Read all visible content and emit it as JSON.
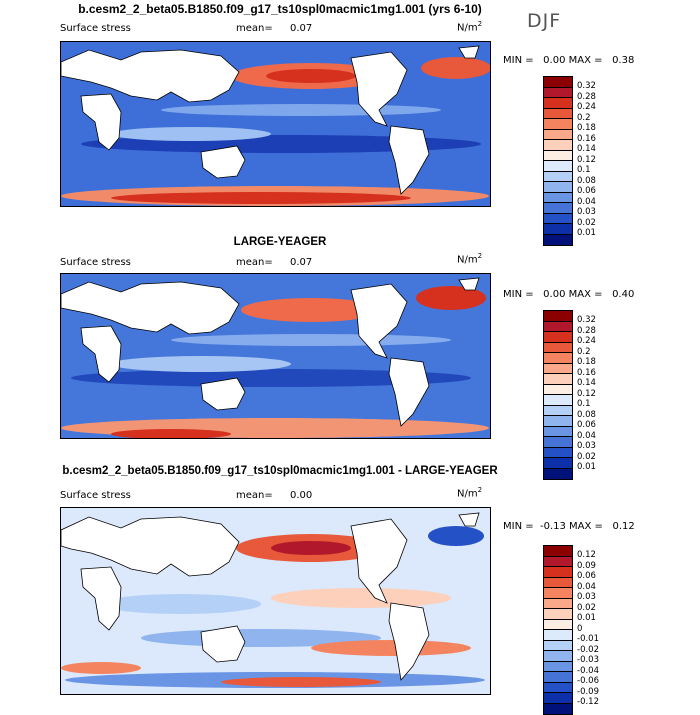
{
  "title": "b.cesm2_2_beta05.B1850.f09_g17_ts10spl0macmic1mg1.001 (yrs 6-10)",
  "season": "DJF",
  "panels": [
    {
      "subtitle": "",
      "left_label": "Surface stress",
      "mean_label": "mean=",
      "mean_value": "0.07",
      "units_base": "N/m",
      "units_exp": "2",
      "min_label": "MIN =",
      "min_value": "0.00",
      "max_label": "MAX =",
      "max_value": "0.38",
      "colorbar": {
        "labels": [
          "0.32",
          "0.28",
          "0.24",
          "0.2",
          "0.18",
          "0.16",
          "0.14",
          "0.12",
          "0.1",
          "0.08",
          "0.06",
          "0.04",
          "0.03",
          "0.02",
          "0.01"
        ],
        "colors": [
          "#8b0000",
          "#b2182b",
          "#d6301f",
          "#e8583a",
          "#f4845f",
          "#f9a98a",
          "#fcd0bb",
          "#fdeee4",
          "#ddeafb",
          "#b5d0f6",
          "#8fb4ee",
          "#6a95e4",
          "#4674d6",
          "#2551c6",
          "#0d2fa8",
          "#00127a"
        ]
      }
    },
    {
      "subtitle": "LARGE-YEAGER",
      "left_label": "Surface stress",
      "mean_label": "mean=",
      "mean_value": "0.07",
      "units_base": "N/m",
      "units_exp": "2",
      "min_label": "MIN =",
      "min_value": "0.00",
      "max_label": "MAX =",
      "max_value": "0.40",
      "colorbar": {
        "labels": [
          "0.32",
          "0.28",
          "0.24",
          "0.2",
          "0.18",
          "0.16",
          "0.14",
          "0.12",
          "0.1",
          "0.08",
          "0.06",
          "0.04",
          "0.03",
          "0.02",
          "0.01"
        ],
        "colors": [
          "#8b0000",
          "#b2182b",
          "#d6301f",
          "#e8583a",
          "#f4845f",
          "#f9a98a",
          "#fcd0bb",
          "#fdeee4",
          "#ddeafb",
          "#b5d0f6",
          "#8fb4ee",
          "#6a95e4",
          "#4674d6",
          "#2551c6",
          "#0d2fa8",
          "#00127a"
        ]
      }
    },
    {
      "subtitle": "b.cesm2_2_beta05.B1850.f09_g17_ts10spl0macmic1mg1.001 - LARGE-YEAGER",
      "left_label": "Surface stress",
      "mean_label": "mean=",
      "mean_value": "0.00",
      "units_base": "N/m",
      "units_exp": "2",
      "min_label": "MIN =",
      "min_value": "-0.13",
      "max_label": "MAX =",
      "max_value": "0.12",
      "colorbar": {
        "labels": [
          "0.12",
          "0.09",
          "0.06",
          "0.04",
          "0.03",
          "0.02",
          "0.01",
          "0",
          "-0.01",
          "-0.02",
          "-0.03",
          "-0.04",
          "-0.06",
          "-0.09",
          "-0.12"
        ],
        "colors": [
          "#8b0000",
          "#b2182b",
          "#d6301f",
          "#e8583a",
          "#f4845f",
          "#f9a98a",
          "#fcd0bb",
          "#fdeee4",
          "#ddeafb",
          "#b5d0f6",
          "#8fb4ee",
          "#6a95e4",
          "#4674d6",
          "#2551c6",
          "#0d2fa8",
          "#00127a"
        ]
      }
    }
  ]
}
